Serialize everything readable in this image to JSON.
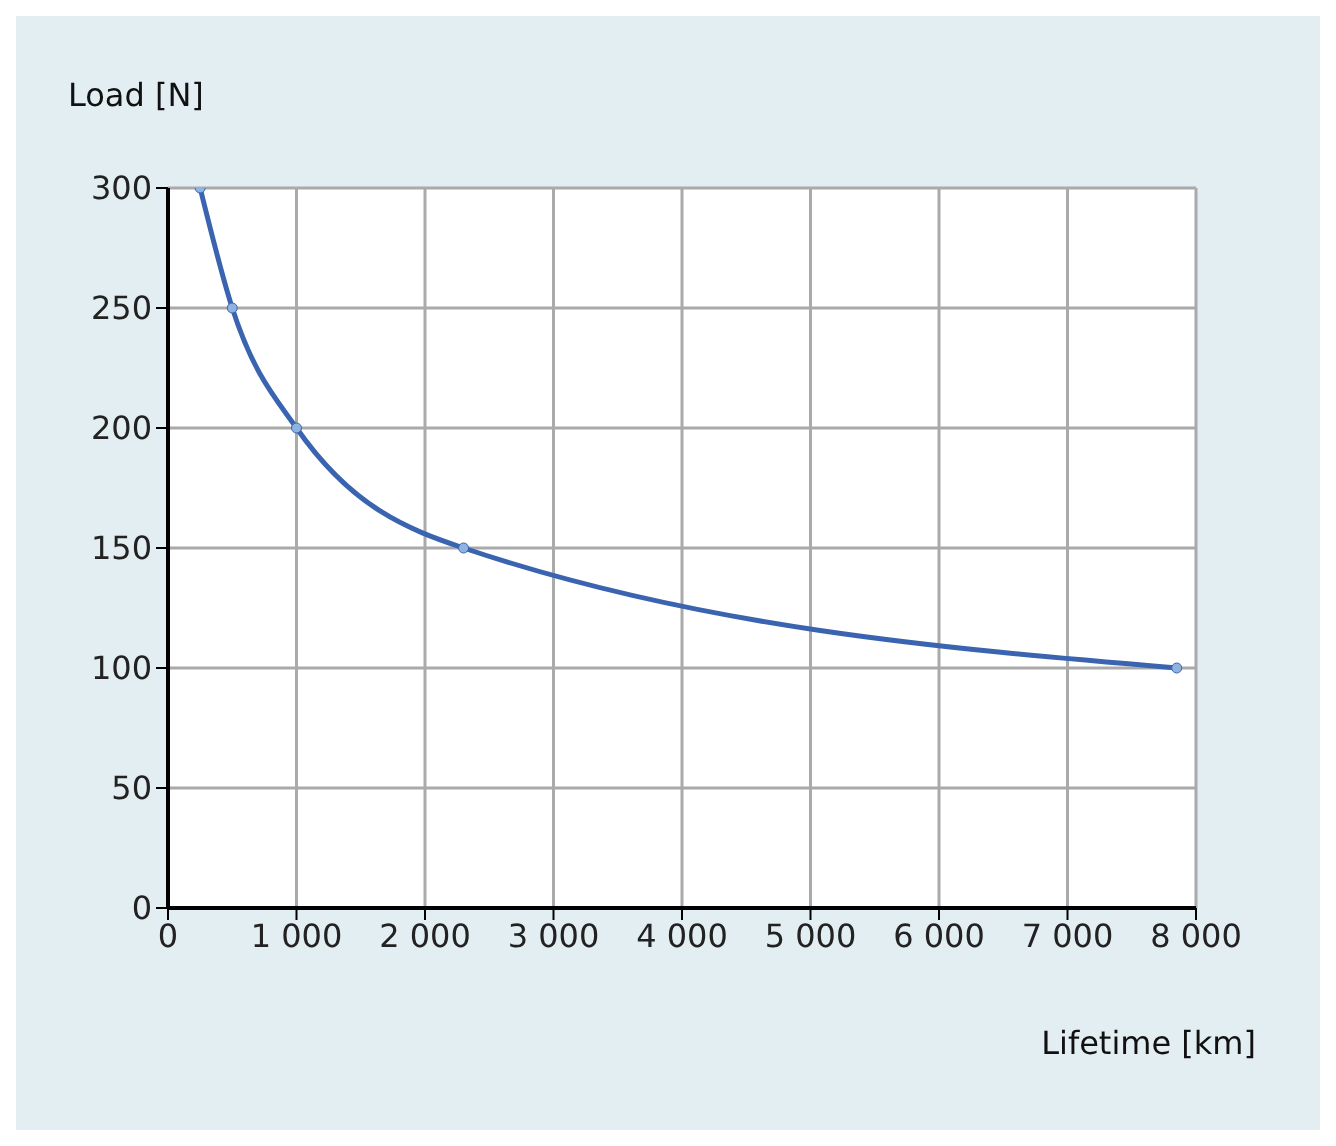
{
  "chart_data": {
    "type": "line",
    "xlabel": "Lifetime [km]",
    "ylabel": "Load [N]",
    "x": [
      250,
      500,
      1000,
      2300,
      7850
    ],
    "series": [
      {
        "color": "#3a64b0",
        "values": [
          300,
          250,
          200,
          150,
          100
        ]
      }
    ],
    "xlim": [
      0,
      8000
    ],
    "xticks": [
      0,
      {
        "value": 1000,
        "label": "1 000"
      },
      {
        "value": 2000,
        "label": "2 000"
      },
      {
        "value": 3000,
        "label": "3 000"
      },
      {
        "value": 4000,
        "label": "4 000"
      },
      {
        "value": 5000,
        "label": "5 000"
      },
      {
        "value": 6000,
        "label": "6 000"
      },
      {
        "value": 7000,
        "label": "7 000"
      },
      {
        "value": 8000,
        "label": "8 000"
      }
    ],
    "ylim": [
      0,
      300
    ],
    "yticks": [
      0,
      50,
      100,
      150,
      200,
      250,
      300
    ],
    "grid": true,
    "marker": "circle",
    "line_style": "solid"
  }
}
